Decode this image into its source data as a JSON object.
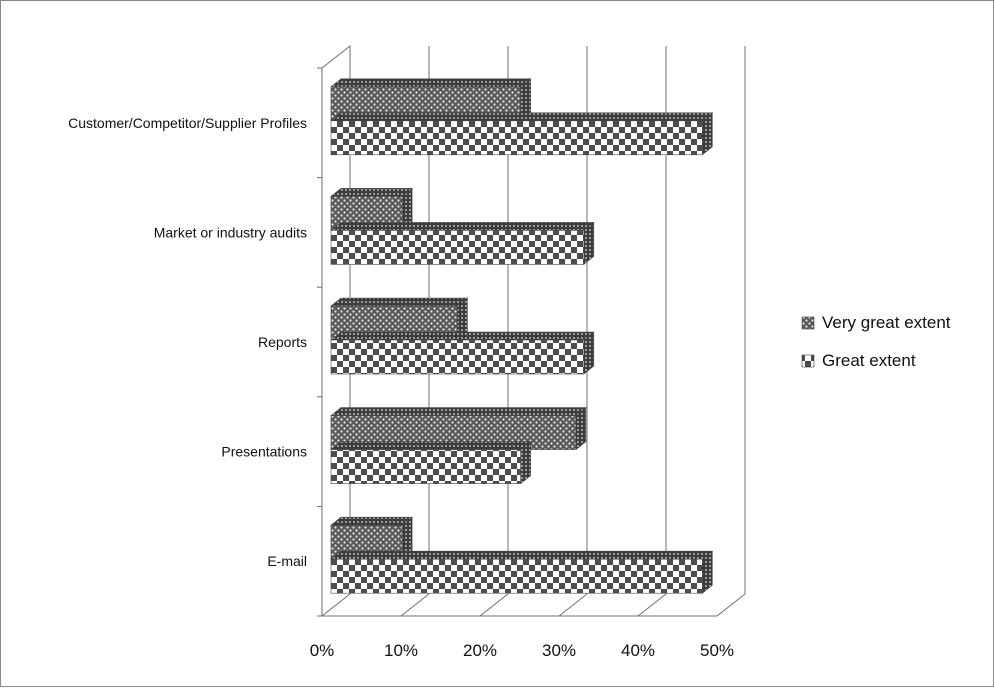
{
  "chart_data": {
    "type": "bar",
    "orientation": "horizontal",
    "three_d": true,
    "categories": [
      "Customer/Competitor/Supplier Profiles",
      "Market or industry audits",
      "Reports",
      "Presentations",
      "E-mail"
    ],
    "series": [
      {
        "name": "Very great extent",
        "values": [
          24,
          9,
          16,
          31,
          9
        ]
      },
      {
        "name": "Great extent",
        "values": [
          47,
          32,
          32,
          24,
          47
        ]
      }
    ],
    "x_ticks": [
      "0%",
      "10%",
      "20%",
      "30%",
      "40%",
      "50%"
    ],
    "xlim": [
      0,
      50
    ],
    "grid": true,
    "legend_position": "right",
    "colors": {
      "bar_dark": "#555555",
      "bar_light": "#ffffff",
      "grid": "#6f6f6f"
    }
  }
}
